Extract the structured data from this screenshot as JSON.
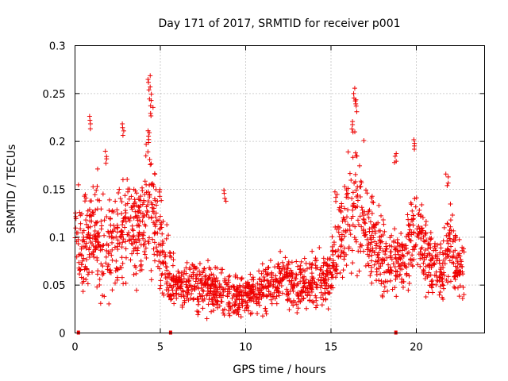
{
  "chart_data": {
    "type": "scatter",
    "title": "Day 171 of 2017, SRMTID for receiver p001",
    "xlabel": "GPS time / hours",
    "ylabel": "SRMTID / TECUs",
    "xlim": [
      0,
      24
    ],
    "ylim": [
      0,
      0.3
    ],
    "xticks": [
      0,
      5,
      10,
      15,
      20
    ],
    "yticks": [
      0,
      0.05,
      0.1,
      0.15,
      0.2,
      0.25,
      0.3
    ],
    "xtick_labels": [
      "0",
      "5",
      "10",
      "15",
      "20"
    ],
    "ytick_labels": [
      "0",
      "0.05",
      "0.1",
      "0.15",
      "0.2",
      "0.25",
      "0.3"
    ],
    "grid": true,
    "marker": "+",
    "color": "#ee0000",
    "baseline_markers_x": [
      0.2,
      5.6,
      18.8
    ],
    "series": [
      {
        "name": "SRMTID",
        "envelope_x": [
          0,
          0.5,
          1.0,
          1.5,
          2.0,
          2.5,
          3.0,
          3.5,
          4.0,
          4.3,
          4.6,
          5.0,
          5.5,
          6.0,
          7.0,
          8.0,
          8.8,
          9.5,
          10.0,
          11.0,
          12.0,
          13.0,
          14.0,
          15.0,
          15.5,
          16.0,
          16.4,
          17.0,
          17.5,
          18.0,
          18.8,
          19.5,
          20.0,
          21.0,
          21.5,
          22.0,
          22.5,
          22.8
        ],
        "envelope_center": [
          0.12,
          0.08,
          0.11,
          0.09,
          0.1,
          0.09,
          0.12,
          0.1,
          0.11,
          0.16,
          0.12,
          0.09,
          0.06,
          0.05,
          0.05,
          0.045,
          0.04,
          0.035,
          0.04,
          0.045,
          0.06,
          0.05,
          0.05,
          0.06,
          0.1,
          0.11,
          0.13,
          0.11,
          0.09,
          0.08,
          0.07,
          0.09,
          0.11,
          0.07,
          0.06,
          0.1,
          0.06,
          0.08
        ],
        "envelope_spread": [
          0.025,
          0.03,
          0.035,
          0.03,
          0.03,
          0.035,
          0.035,
          0.025,
          0.03,
          0.05,
          0.03,
          0.03,
          0.02,
          0.015,
          0.015,
          0.015,
          0.015,
          0.013,
          0.013,
          0.015,
          0.015,
          0.015,
          0.015,
          0.02,
          0.03,
          0.035,
          0.045,
          0.035,
          0.025,
          0.025,
          0.02,
          0.03,
          0.03,
          0.025,
          0.02,
          0.03,
          0.02,
          0.02
        ],
        "peaks": [
          {
            "x": 0.9,
            "y": 0.227
          },
          {
            "x": 1.8,
            "y": 0.19
          },
          {
            "x": 2.8,
            "y": 0.221
          },
          {
            "x": 4.35,
            "y": 0.27
          },
          {
            "x": 4.4,
            "y": 0.255
          },
          {
            "x": 4.5,
            "y": 0.24
          },
          {
            "x": 4.3,
            "y": 0.212
          },
          {
            "x": 8.8,
            "y": 0.15
          },
          {
            "x": 16.4,
            "y": 0.256
          },
          {
            "x": 16.45,
            "y": 0.245
          },
          {
            "x": 16.3,
            "y": 0.222
          },
          {
            "x": 18.75,
            "y": 0.19
          },
          {
            "x": 19.9,
            "y": 0.204
          },
          {
            "x": 21.8,
            "y": 0.167
          },
          {
            "x": 5.0,
            "y": 0.152
          },
          {
            "x": 15.3,
            "y": 0.15
          }
        ]
      }
    ]
  }
}
